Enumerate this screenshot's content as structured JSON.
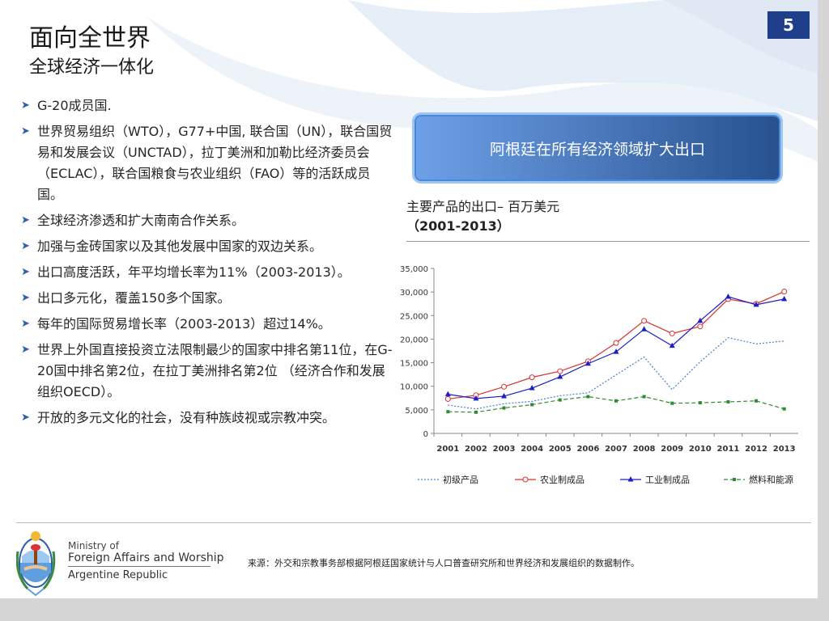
{
  "page_number": "5",
  "title": "面向全世界",
  "subtitle": "全球经济一体化",
  "bullets": [
    "G-20成员国.",
    "世界贸易组织（WTO），G77+中国, 联合国（UN），联合国贸易和发展会议（UNCTAD），拉丁美洲和加勒比经济委员会（ECLAC），联合国粮食与农业组织（FAO）等的活跃成员国。",
    "全球经济渗透和扩大南南合作关系。",
    "加强与金砖国家以及其他发展中国家的双边关系。",
    "出口高度活跃，年平均增长率为11%（2003-2013）。",
    "出口多元化，覆盖150多个国家。",
    "每年的国际贸易增长率（2003-2013）超过14%。",
    "世界上外国直接投资立法限制最少的国家中排名第11位，在G-20国中排名第2位，在拉丁美洲排名第2位 （经济合作和发展组织OECD）。",
    "开放的多元文化的社会，没有种族歧视或宗教冲突。"
  ],
  "banner_text": "阿根廷在所有经济领域扩大出口",
  "chart_heading_line1": "主要产品的出口– 百万美元",
  "chart_heading_line2": "（2001-2013）",
  "ministry": {
    "line1": "Ministry of",
    "line2": "Foreign Affairs and Worship",
    "line3": "Argentine Republic"
  },
  "source_text": "来源：外交和宗教事务部根据阿根廷国家统计与人口普查研究所和世界经济和发展组织的数据制作。",
  "icons": {
    "bullet": "arrow-right-icon",
    "logo": "coat-of-arms-icon"
  },
  "colors": {
    "accent": "#1f3f8a",
    "bullet": "#2e5fa8"
  },
  "chart_data": {
    "type": "line",
    "title": "主要产品的出口– 百万美元",
    "subtitle": "（2001-2013）",
    "x": [
      "2001",
      "2002",
      "2003",
      "2004",
      "2005",
      "2006",
      "2007",
      "2008",
      "2009",
      "2010",
      "2011",
      "2012",
      "2013"
    ],
    "ylim": [
      0,
      35000
    ],
    "yticks": [
      0,
      5000,
      10000,
      15000,
      20000,
      25000,
      30000,
      35000
    ],
    "ytick_labels": [
      "0",
      "5,000",
      "10,000",
      "15,000",
      "20,000",
      "25,000",
      "30,000",
      "35,000"
    ],
    "legend_position": "bottom",
    "grid": false,
    "series": [
      {
        "name": "初级产品",
        "color": "#4a7fd0",
        "style": "dotted",
        "marker": "none",
        "values": [
          6000,
          5200,
          6300,
          6800,
          8000,
          8600,
          12400,
          16200,
          9300,
          15200,
          20300,
          19000,
          19600
        ]
      },
      {
        "name": "农业制成品",
        "color": "#d93030",
        "style": "solid",
        "marker": "circle-open",
        "values": [
          7300,
          8100,
          9900,
          11900,
          13200,
          15300,
          19200,
          23900,
          21200,
          22700,
          28500,
          27500,
          30100
        ]
      },
      {
        "name": "工业制成品",
        "color": "#1b1fc4",
        "style": "solid",
        "marker": "triangle",
        "values": [
          8300,
          7400,
          7900,
          9600,
          12000,
          14800,
          17300,
          22100,
          18600,
          23900,
          29000,
          27300,
          28500
        ]
      },
      {
        "name": "燃料和能源",
        "color": "#2e8b2e",
        "style": "dashed",
        "marker": "square",
        "values": [
          4600,
          4500,
          5400,
          6100,
          7100,
          7800,
          6900,
          7800,
          6400,
          6500,
          6700,
          6900,
          5200
        ]
      }
    ]
  }
}
